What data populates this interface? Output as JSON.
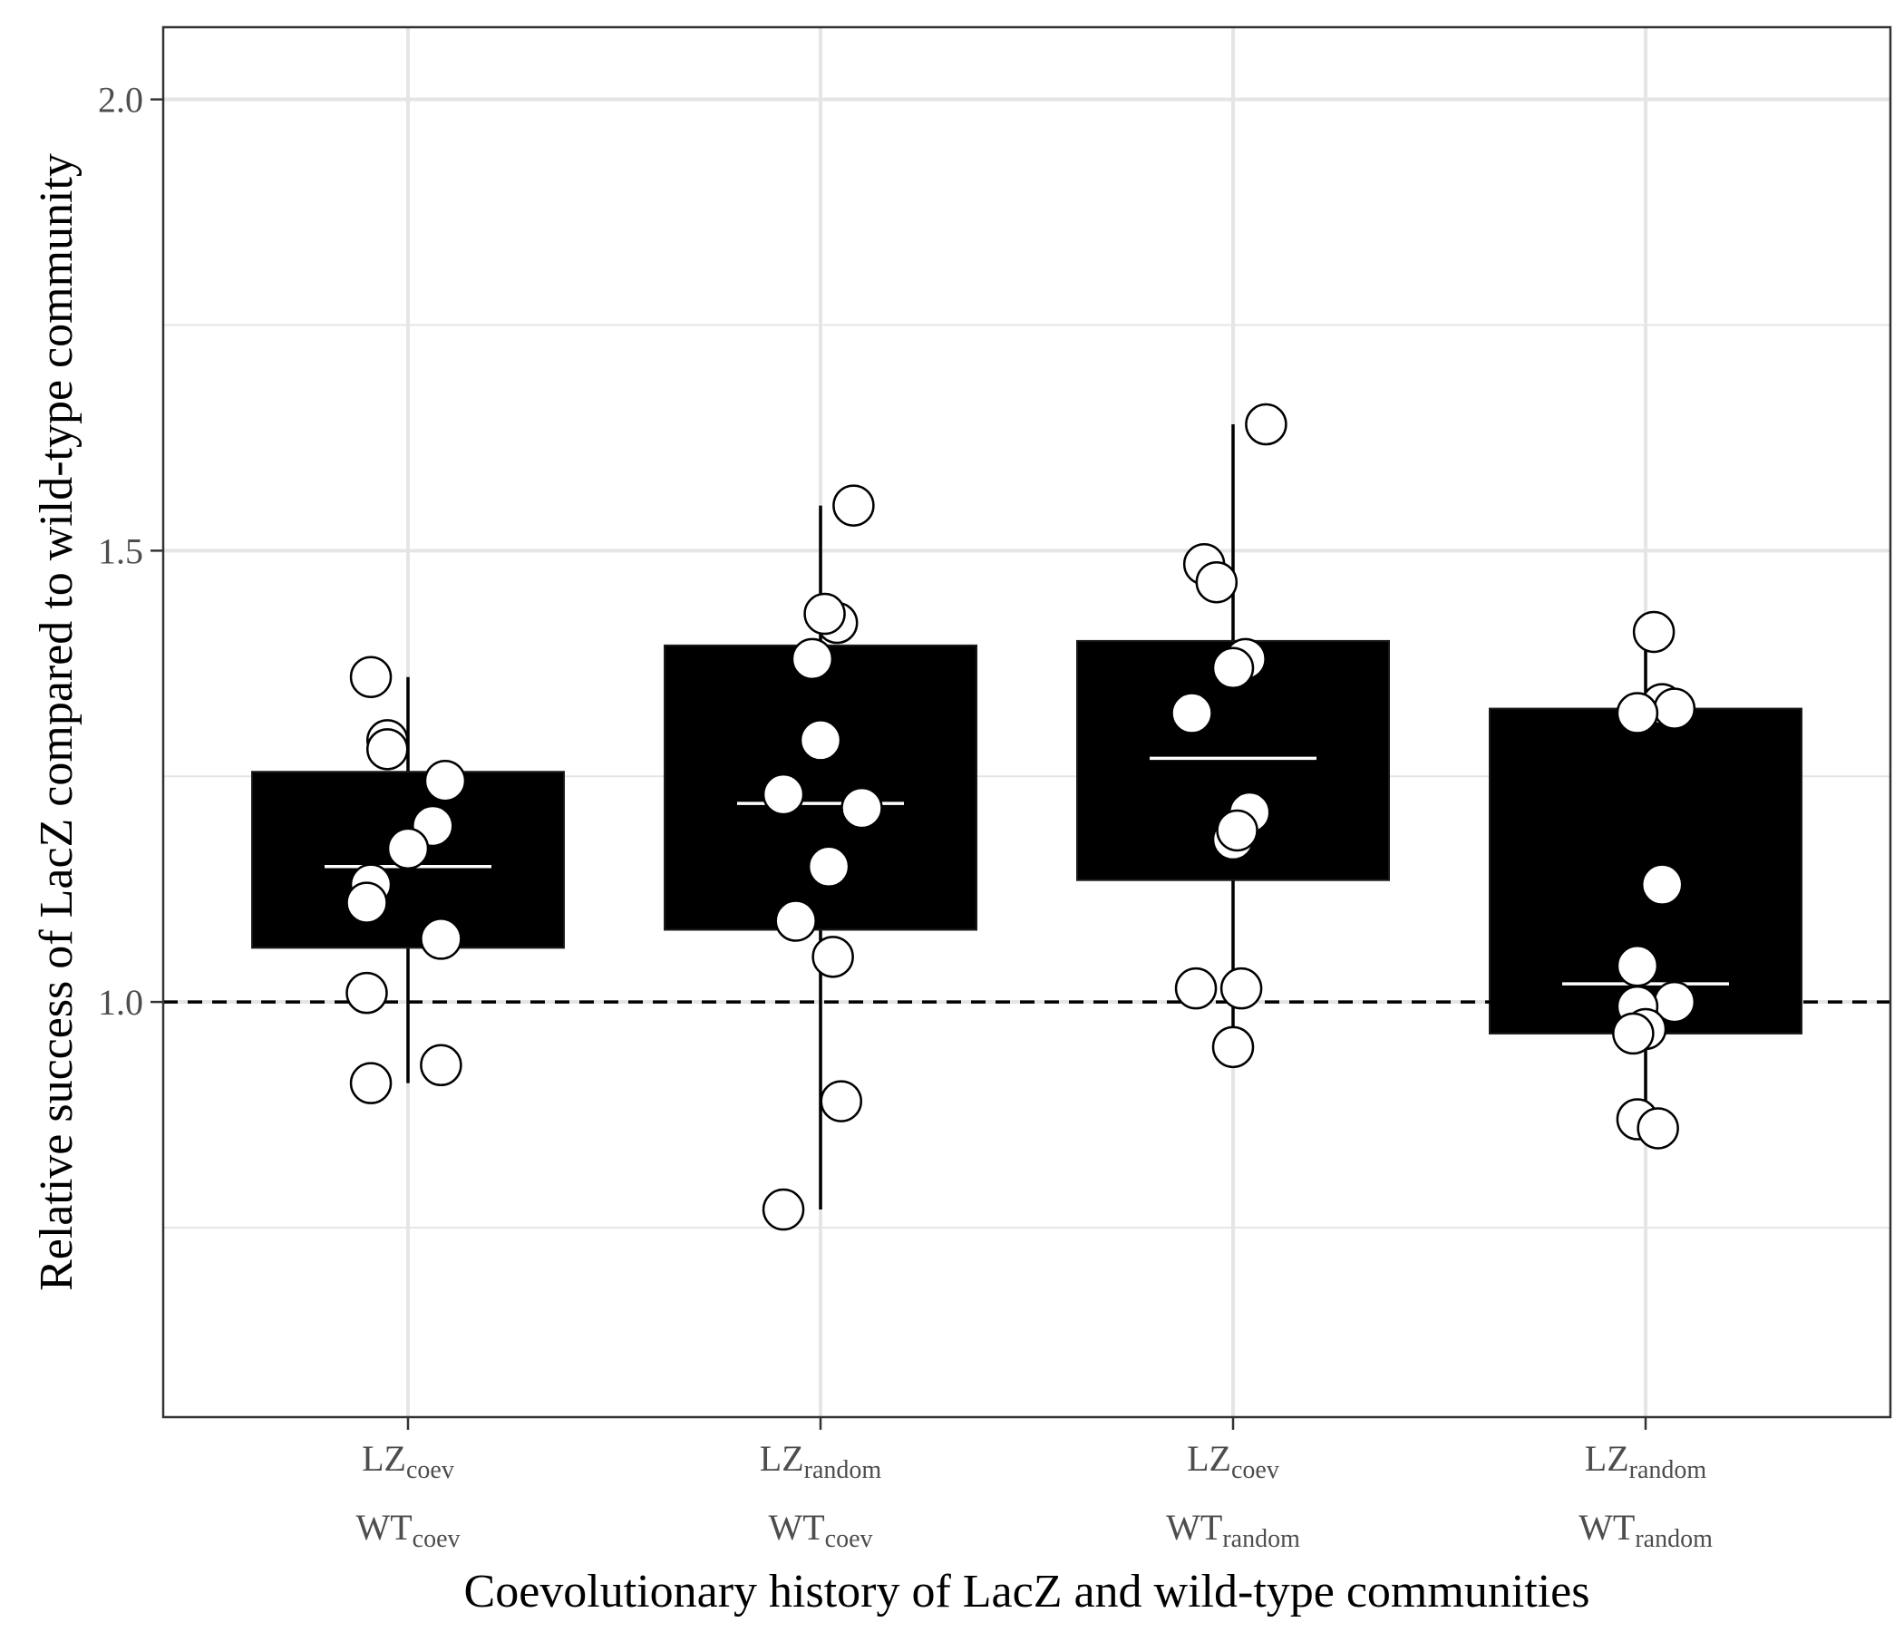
{
  "chart_data": {
    "type": "box",
    "xlabel": "Coevolutionary history of LacZ and wild-type communities",
    "ylabel": "Relative success of LacZ compared to wild-type community",
    "ylim": [
      0.54,
      2.08
    ],
    "yticks": [
      1.0,
      1.5,
      2.0
    ],
    "ytick_labels": [
      "1.0",
      "1.5",
      "2.0"
    ],
    "yminor": [
      0.75,
      1.25,
      1.75
    ],
    "reference_line": 1.0,
    "grid": true,
    "colors": {
      "box": "#000000",
      "median": "#ffffff",
      "point_fill": "#ffffff",
      "point_stroke": "#000000",
      "grid": "#e5e5e5",
      "panel_border": "#333333"
    },
    "categories": [
      {
        "lz": "LZ",
        "lz_sub": "coev",
        "wt": "WT",
        "wt_sub": "coev"
      },
      {
        "lz": "LZ",
        "lz_sub": "random",
        "wt": "WT",
        "wt_sub": "coev"
      },
      {
        "lz": "LZ",
        "lz_sub": "coev",
        "wt": "WT",
        "wt_sub": "random"
      },
      {
        "lz": "LZ",
        "lz_sub": "random",
        "wt": "WT",
        "wt_sub": "random"
      }
    ],
    "boxes": [
      {
        "q1": 1.06,
        "median": 1.15,
        "q3": 1.255,
        "whisker_low": 0.91,
        "whisker_high": 1.36
      },
      {
        "q1": 1.08,
        "median": 1.22,
        "q3": 1.395,
        "whisker_low": 0.77,
        "whisker_high": 1.55
      },
      {
        "q1": 1.135,
        "median": 1.27,
        "q3": 1.4,
        "whisker_low": 0.95,
        "whisker_high": 1.64
      },
      {
        "q1": 0.965,
        "median": 1.02,
        "q3": 1.325,
        "whisker_low": 0.86,
        "whisker_high": 1.41
      }
    ],
    "points": [
      [
        {
          "j": -0.09,
          "y": 1.36
        },
        {
          "j": -0.05,
          "y": 1.29
        },
        {
          "j": -0.05,
          "y": 1.28
        },
        {
          "j": 0.09,
          "y": 1.245
        },
        {
          "j": 0.06,
          "y": 1.195
        },
        {
          "j": 0.0,
          "y": 1.17
        },
        {
          "j": -0.09,
          "y": 1.13
        },
        {
          "j": -0.1,
          "y": 1.11
        },
        {
          "j": 0.08,
          "y": 1.07
        },
        {
          "j": -0.1,
          "y": 1.01
        },
        {
          "j": 0.08,
          "y": 0.93
        },
        {
          "j": -0.09,
          "y": 0.91
        }
      ],
      [
        {
          "j": 0.08,
          "y": 1.55
        },
        {
          "j": 0.04,
          "y": 1.42
        },
        {
          "j": 0.01,
          "y": 1.43
        },
        {
          "j": -0.02,
          "y": 1.38
        },
        {
          "j": 0.0,
          "y": 1.29
        },
        {
          "j": -0.09,
          "y": 1.23
        },
        {
          "j": 0.1,
          "y": 1.215
        },
        {
          "j": 0.02,
          "y": 1.15
        },
        {
          "j": -0.06,
          "y": 1.09
        },
        {
          "j": 0.03,
          "y": 1.05
        },
        {
          "j": 0.05,
          "y": 0.89
        },
        {
          "j": -0.09,
          "y": 0.77
        }
      ],
      [
        {
          "j": 0.08,
          "y": 1.64
        },
        {
          "j": -0.07,
          "y": 1.485
        },
        {
          "j": -0.04,
          "y": 1.465
        },
        {
          "j": 0.03,
          "y": 1.38
        },
        {
          "j": 0.0,
          "y": 1.37
        },
        {
          "j": -0.1,
          "y": 1.32
        },
        {
          "j": 0.04,
          "y": 1.21
        },
        {
          "j": 0.0,
          "y": 1.18
        },
        {
          "j": 0.01,
          "y": 1.19
        },
        {
          "j": -0.09,
          "y": 1.015
        },
        {
          "j": 0.02,
          "y": 1.015
        },
        {
          "j": 0.0,
          "y": 0.95
        }
      ],
      [
        {
          "j": 0.02,
          "y": 1.41
        },
        {
          "j": 0.04,
          "y": 1.33
        },
        {
          "j": 0.07,
          "y": 1.325
        },
        {
          "j": -0.02,
          "y": 1.32
        },
        {
          "j": 0.04,
          "y": 1.13
        },
        {
          "j": -0.02,
          "y": 1.04
        },
        {
          "j": 0.07,
          "y": 1.0
        },
        {
          "j": -0.02,
          "y": 0.995
        },
        {
          "j": 0.0,
          "y": 0.97
        },
        {
          "j": -0.03,
          "y": 0.965
        },
        {
          "j": -0.02,
          "y": 0.87
        },
        {
          "j": 0.03,
          "y": 0.86
        }
      ]
    ]
  }
}
